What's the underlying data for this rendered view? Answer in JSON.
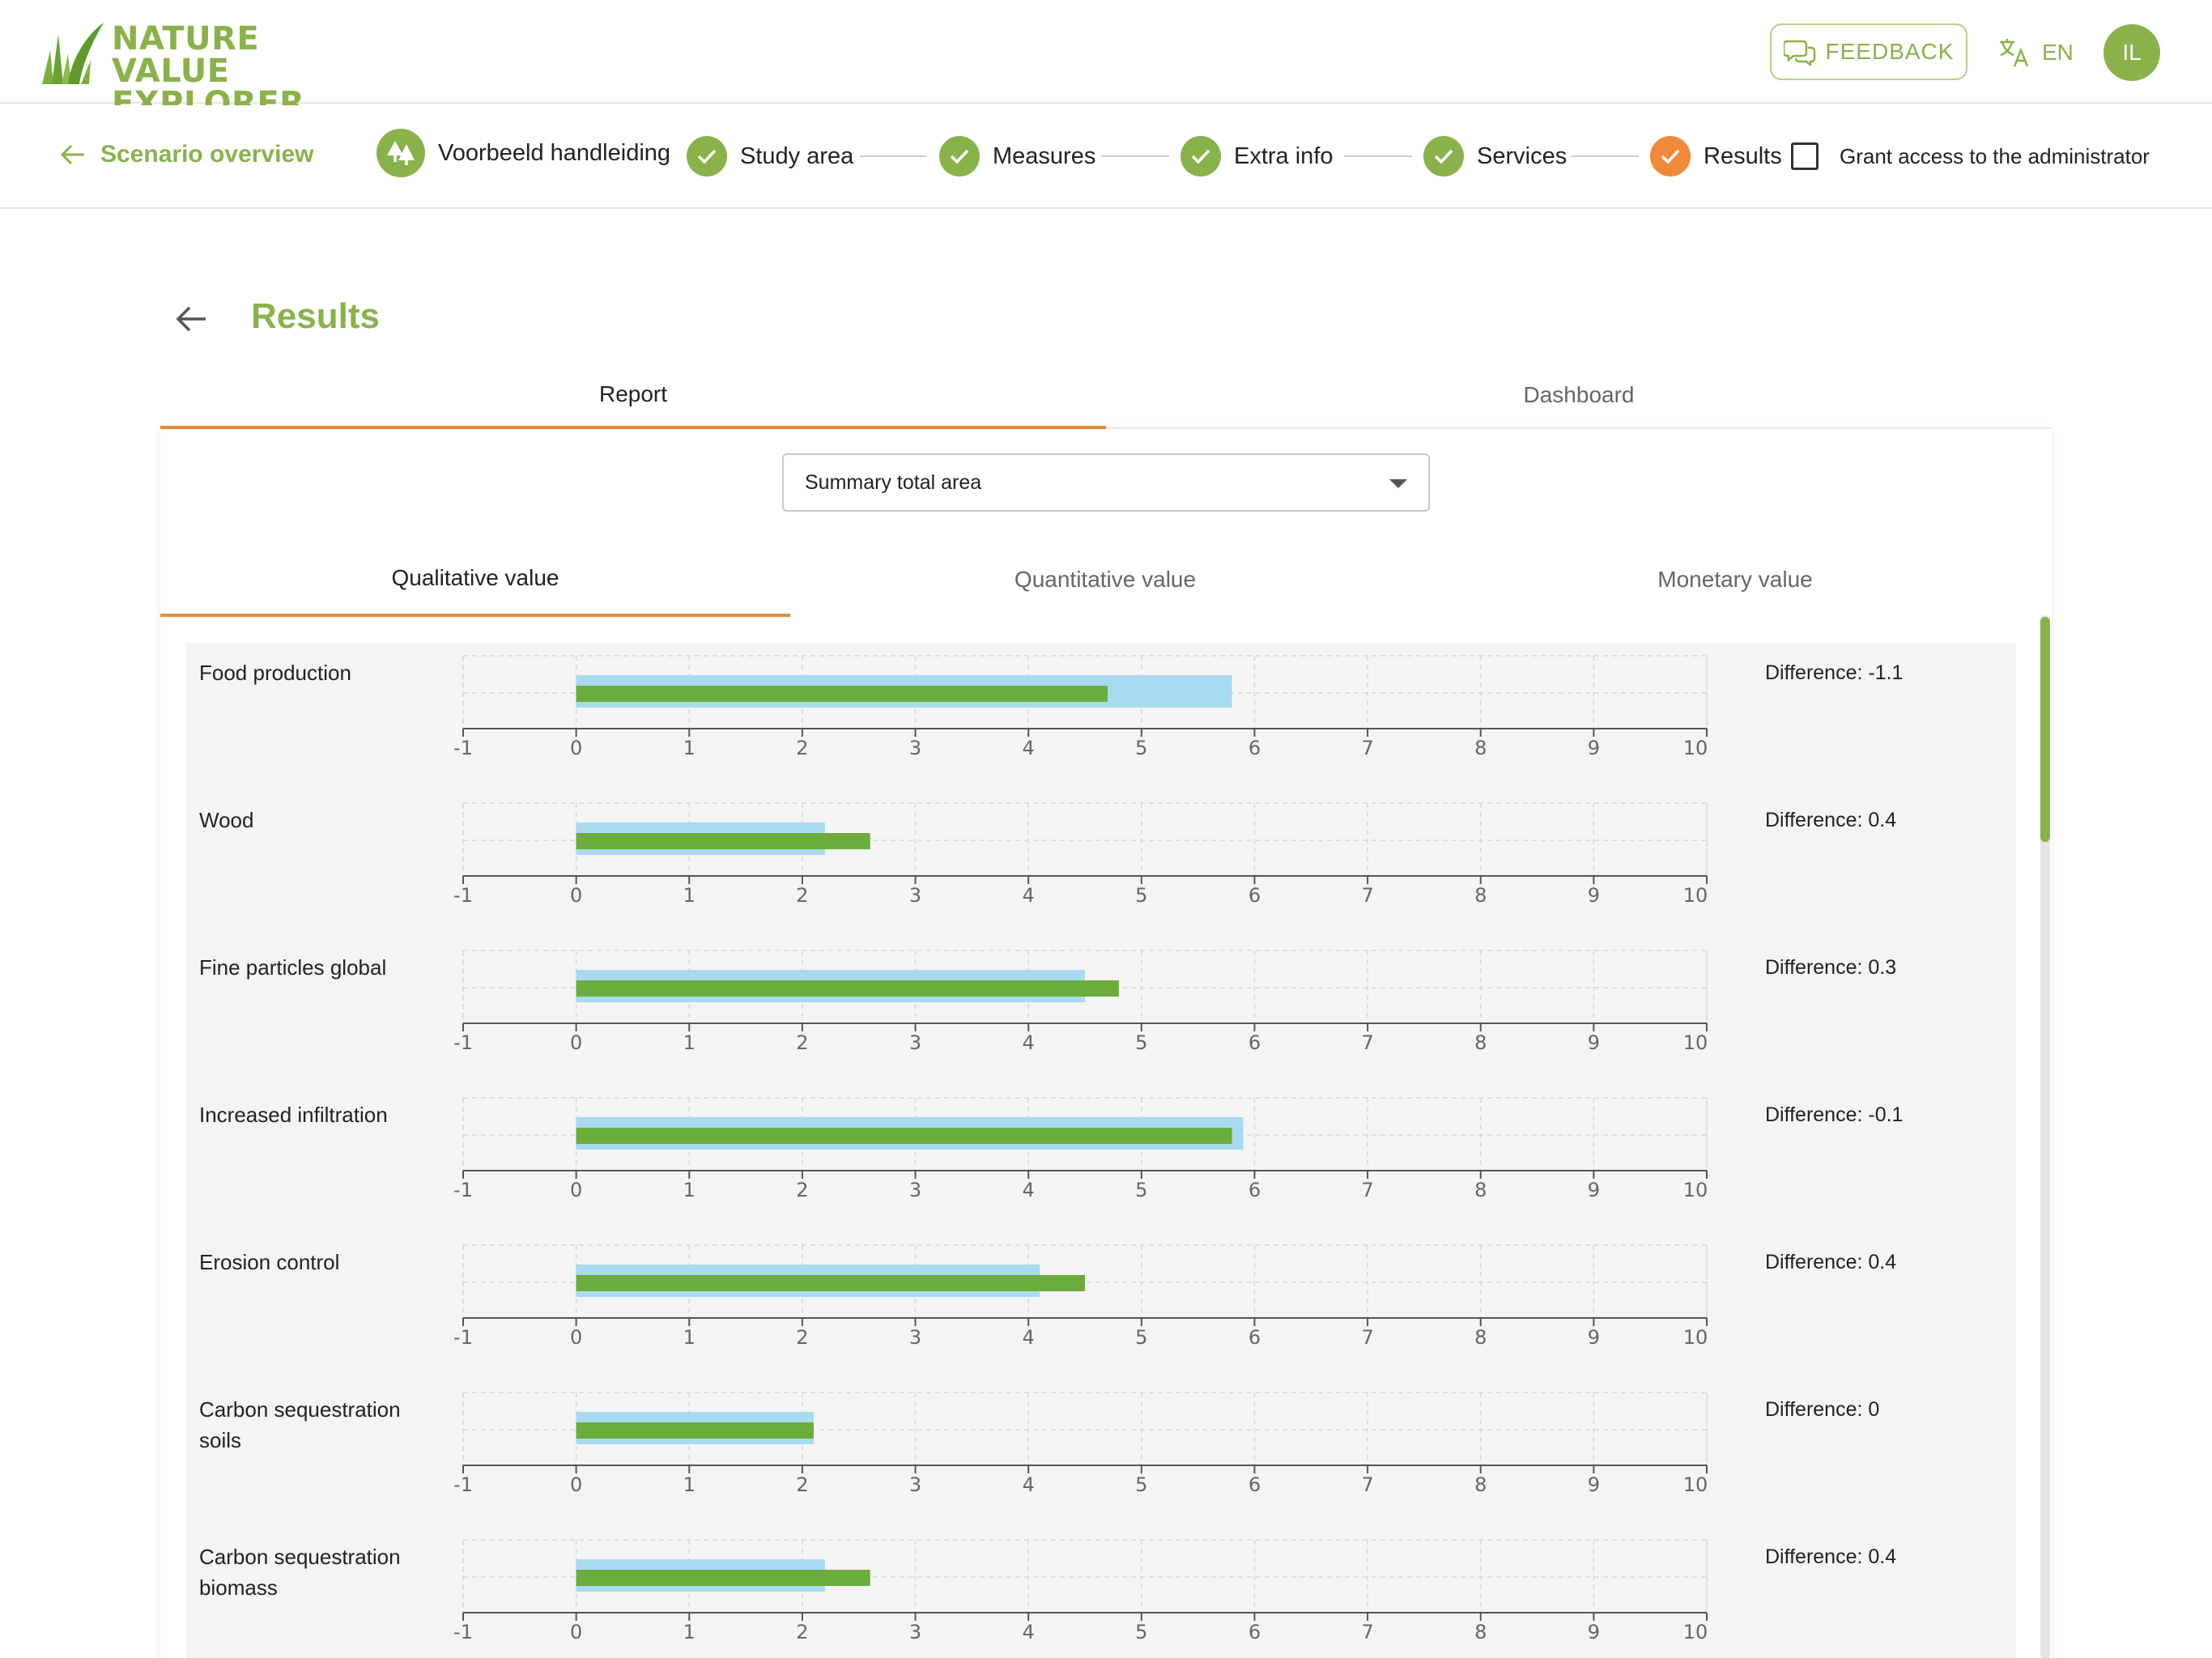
{
  "header": {
    "logo_line1": "NATURE VALUE",
    "logo_line2": "EXPLORER",
    "feedback_label": "FEEDBACK",
    "language": "EN",
    "avatar_initials": "IL"
  },
  "stepper": {
    "back_label": "Scenario overview",
    "project_name": "Voorbeeld handleiding",
    "steps": [
      {
        "label": "Study area",
        "status": "done"
      },
      {
        "label": "Measures",
        "status": "done"
      },
      {
        "label": "Extra info",
        "status": "done"
      },
      {
        "label": "Services",
        "status": "done"
      },
      {
        "label": "Results",
        "status": "current"
      }
    ],
    "grant_access_label": "Grant access to the administrator",
    "grant_access_checked": false
  },
  "page": {
    "title": "Results",
    "tabs": [
      {
        "label": "Report",
        "active": true
      },
      {
        "label": "Dashboard",
        "active": false
      }
    ]
  },
  "report": {
    "selected_area": "Summary total area",
    "value_tabs": [
      {
        "label": "Qualitative value",
        "active": true
      },
      {
        "label": "Quantitative value",
        "active": false
      },
      {
        "label": "Monetary value",
        "active": false
      }
    ]
  },
  "colors": {
    "brand_green": "#8ab24a",
    "accent_orange": "#f08a3a",
    "bar_reference_blue": "#a8daf0",
    "bar_scenario_green": "#6aad3c"
  },
  "chart_data": {
    "type": "bar",
    "orientation": "horizontal",
    "xlim": [
      -1,
      10
    ],
    "x_ticks": [
      "-1",
      "0",
      "1",
      "2",
      "3",
      "4",
      "5",
      "6",
      "7",
      "8",
      "9",
      "10"
    ],
    "grid": true,
    "series_colors": [
      "#a8daf0",
      "#6aad3c"
    ],
    "rows": [
      {
        "label": "Food production",
        "reference": 5.8,
        "scenario": 4.7,
        "difference_text": "Difference: -1.1"
      },
      {
        "label": "Wood",
        "reference": 2.2,
        "scenario": 2.6,
        "difference_text": "Difference: 0.4"
      },
      {
        "label": "Fine particles global",
        "reference": 4.5,
        "scenario": 4.8,
        "difference_text": "Difference: 0.3"
      },
      {
        "label": "Increased infiltration",
        "reference": 5.9,
        "scenario": 5.8,
        "difference_text": "Difference: -0.1"
      },
      {
        "label": "Erosion control",
        "reference": 4.1,
        "scenario": 4.5,
        "difference_text": "Difference: 0.4"
      },
      {
        "label": "Carbon sequestration soils",
        "reference": 2.1,
        "scenario": 2.1,
        "difference_text": "Difference: 0"
      },
      {
        "label": "Carbon sequestration biomass",
        "reference": 2.2,
        "scenario": 2.6,
        "difference_text": "Difference: 0.4"
      }
    ]
  }
}
